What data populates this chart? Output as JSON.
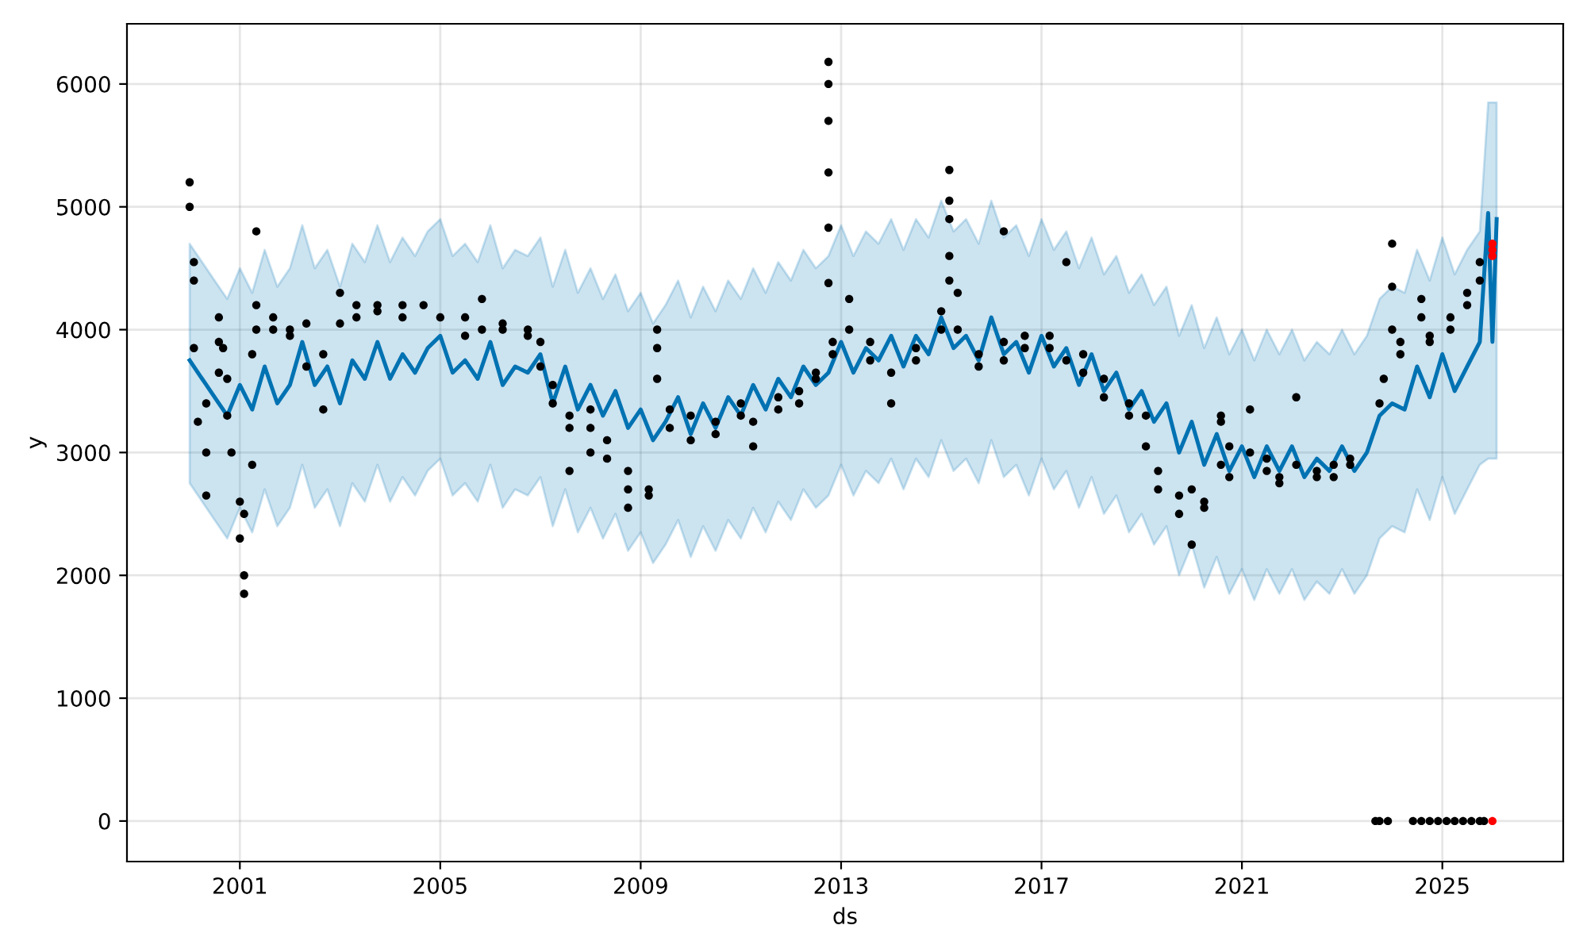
{
  "chart_data": {
    "type": "line",
    "xlabel": "ds",
    "ylabel": "y",
    "grid": true,
    "xlim": [
      "1998-10-01",
      "2027-06-01"
    ],
    "xticks": [
      {
        "value": "2001-01-01",
        "label": "2001"
      },
      {
        "value": "2005-01-01",
        "label": "2005"
      },
      {
        "value": "2009-01-01",
        "label": "2009"
      },
      {
        "value": "2013-01-01",
        "label": "2013"
      },
      {
        "value": "2017-01-01",
        "label": "2017"
      },
      {
        "value": "2021-01-01",
        "label": "2021"
      },
      {
        "value": "2025-01-01",
        "label": "2025"
      }
    ],
    "ylim": [
      -330,
      6490
    ],
    "yticks": [
      0,
      1000,
      2000,
      3000,
      4000,
      5000,
      6000
    ],
    "series": [
      {
        "color": "#0072b2",
        "x": [
          "2000-01",
          "2000-04",
          "2000-07",
          "2000-10",
          "2001-01",
          "2001-04",
          "2001-07",
          "2001-10",
          "2002-01",
          "2002-04",
          "2002-07",
          "2002-10",
          "2003-01",
          "2003-04",
          "2003-07",
          "2003-10",
          "2004-01",
          "2004-04",
          "2004-07",
          "2004-10",
          "2005-01",
          "2005-04",
          "2005-07",
          "2005-10",
          "2006-01",
          "2006-04",
          "2006-07",
          "2006-10",
          "2007-01",
          "2007-04",
          "2007-07",
          "2007-10",
          "2008-01",
          "2008-04",
          "2008-07",
          "2008-10",
          "2009-01",
          "2009-04",
          "2009-07",
          "2009-10",
          "2010-01",
          "2010-04",
          "2010-07",
          "2010-10",
          "2011-01",
          "2011-04",
          "2011-07",
          "2011-10",
          "2012-01",
          "2012-04",
          "2012-07",
          "2012-10",
          "2013-01",
          "2013-04",
          "2013-07",
          "2013-10",
          "2014-01",
          "2014-04",
          "2014-07",
          "2014-10",
          "2015-01",
          "2015-04",
          "2015-07",
          "2015-10",
          "2016-01",
          "2016-04",
          "2016-07",
          "2016-10",
          "2017-01",
          "2017-04",
          "2017-07",
          "2017-10",
          "2018-01",
          "2018-04",
          "2018-07",
          "2018-10",
          "2019-01",
          "2019-04",
          "2019-07",
          "2019-10",
          "2020-01",
          "2020-04",
          "2020-07",
          "2020-10",
          "2021-01",
          "2021-04",
          "2021-07",
          "2021-10",
          "2022-01",
          "2022-04",
          "2022-07",
          "2022-10",
          "2023-01",
          "2023-04",
          "2023-07",
          "2023-10",
          "2024-01",
          "2024-04",
          "2024-07",
          "2024-10",
          "2025-01",
          "2025-04",
          "2025-07",
          "2025-10",
          "2025-12",
          "2026-01",
          "2026-02"
        ],
        "values": [
          3750,
          3600,
          3450,
          3300,
          3550,
          3350,
          3700,
          3400,
          3550,
          3900,
          3550,
          3700,
          3400,
          3750,
          3600,
          3900,
          3600,
          3800,
          3650,
          3850,
          3950,
          3650,
          3750,
          3600,
          3900,
          3550,
          3700,
          3650,
          3800,
          3400,
          3700,
          3350,
          3550,
          3300,
          3500,
          3200,
          3350,
          3100,
          3250,
          3450,
          3150,
          3400,
          3200,
          3450,
          3300,
          3550,
          3350,
          3600,
          3450,
          3700,
          3550,
          3650,
          3900,
          3650,
          3850,
          3750,
          3950,
          3700,
          3950,
          3800,
          4100,
          3850,
          3950,
          3750,
          4100,
          3800,
          3900,
          3650,
          3950,
          3700,
          3850,
          3550,
          3800,
          3500,
          3650,
          3350,
          3500,
          3250,
          3400,
          3000,
          3250,
          2900,
          3150,
          2850,
          3050,
          2800,
          3050,
          2850,
          3050,
          2800,
          2950,
          2850,
          3050,
          2850,
          3000,
          3300,
          3400,
          3350,
          3700,
          3450,
          3800,
          3500,
          3700,
          3900,
          4950,
          3900,
          4900
        ],
        "upper": [
          4700,
          4550,
          4400,
          4250,
          4500,
          4300,
          4650,
          4350,
          4500,
          4850,
          4500,
          4650,
          4350,
          4700,
          4550,
          4850,
          4550,
          4750,
          4600,
          4800,
          4900,
          4600,
          4700,
          4550,
          4850,
          4500,
          4650,
          4600,
          4750,
          4350,
          4650,
          4300,
          4500,
          4250,
          4450,
          4150,
          4300,
          4050,
          4200,
          4400,
          4100,
          4350,
          4150,
          4400,
          4250,
          4500,
          4300,
          4550,
          4400,
          4650,
          4500,
          4600,
          4850,
          4600,
          4800,
          4700,
          4900,
          4650,
          4900,
          4750,
          5050,
          4800,
          4900,
          4700,
          5050,
          4750,
          4850,
          4600,
          4900,
          4650,
          4800,
          4500,
          4750,
          4450,
          4600,
          4300,
          4450,
          4200,
          4350,
          3950,
          4200,
          3850,
          4100,
          3800,
          4000,
          3750,
          4000,
          3800,
          4000,
          3750,
          3900,
          3800,
          4000,
          3800,
          3950,
          4250,
          4350,
          4300,
          4650,
          4400,
          4750,
          4450,
          4650,
          4800,
          5850,
          5850,
          5850
        ],
        "lower": [
          2750,
          2600,
          2450,
          2300,
          2550,
          2350,
          2700,
          2400,
          2550,
          2900,
          2550,
          2700,
          2400,
          2750,
          2600,
          2900,
          2600,
          2800,
          2650,
          2850,
          2950,
          2650,
          2750,
          2600,
          2900,
          2550,
          2700,
          2650,
          2800,
          2400,
          2700,
          2350,
          2550,
          2300,
          2500,
          2200,
          2350,
          2100,
          2250,
          2450,
          2150,
          2400,
          2200,
          2450,
          2300,
          2550,
          2350,
          2600,
          2450,
          2700,
          2550,
          2650,
          2900,
          2650,
          2850,
          2750,
          2950,
          2700,
          2950,
          2800,
          3100,
          2850,
          2950,
          2750,
          3100,
          2800,
          2900,
          2650,
          2950,
          2700,
          2850,
          2550,
          2800,
          2500,
          2650,
          2350,
          2500,
          2250,
          2400,
          2000,
          2250,
          1900,
          2150,
          1850,
          2050,
          1800,
          2050,
          1850,
          2050,
          1800,
          1950,
          1850,
          2050,
          1850,
          2000,
          2300,
          2400,
          2350,
          2700,
          2450,
          2800,
          2500,
          2700,
          2900,
          2950,
          2950,
          2950
        ]
      },
      {
        "type": "scatter",
        "marker": "circle",
        "color": "#000000",
        "x": [
          "2000-01",
          "2000-01",
          "2000-02",
          "2000-02",
          "2000-02",
          "2000-03",
          "2000-05",
          "2000-05",
          "2000-05",
          "2000-08",
          "2000-08",
          "2000-08",
          "2000-09",
          "2000-10",
          "2000-10",
          "2000-11",
          "2001-01",
          "2001-01",
          "2001-02",
          "2001-02",
          "2001-02",
          "2001-04",
          "2001-04",
          "2001-05",
          "2001-05",
          "2001-05",
          "2001-09",
          "2001-09",
          "2002-01",
          "2002-01",
          "2002-05",
          "2002-05",
          "2002-09",
          "2002-09",
          "2003-01",
          "2003-01",
          "2003-05",
          "2003-05",
          "2003-10",
          "2003-10",
          "2004-04",
          "2004-04",
          "2004-09",
          "2005-01",
          "2005-07",
          "2005-07",
          "2005-11",
          "2005-11",
          "2006-04",
          "2006-04",
          "2006-10",
          "2006-10",
          "2007-01",
          "2007-01",
          "2007-04",
          "2007-04",
          "2007-08",
          "2007-08",
          "2007-08",
          "2008-01",
          "2008-01",
          "2008-01",
          "2008-05",
          "2008-05",
          "2008-10",
          "2008-10",
          "2008-10",
          "2009-03",
          "2009-03",
          "2009-05",
          "2009-05",
          "2009-05",
          "2009-08",
          "2009-08",
          "2010-01",
          "2010-01",
          "2010-07",
          "2010-07",
          "2011-01",
          "2011-01",
          "2011-04",
          "2011-04",
          "2011-10",
          "2011-10",
          "2012-03",
          "2012-03",
          "2012-07",
          "2012-07",
          "2012-10",
          "2012-10",
          "2012-10",
          "2012-10",
          "2012-10",
          "2012-10",
          "2012-11",
          "2012-11",
          "2013-03",
          "2013-03",
          "2013-08",
          "2013-08",
          "2014-01",
          "2014-01",
          "2014-07",
          "2014-07",
          "2015-01",
          "2015-01",
          "2015-03",
          "2015-03",
          "2015-03",
          "2015-03",
          "2015-03",
          "2015-05",
          "2015-05",
          "2015-10",
          "2015-10",
          "2016-04",
          "2016-04",
          "2016-04",
          "2016-09",
          "2016-09",
          "2017-03",
          "2017-03",
          "2017-07",
          "2017-07",
          "2017-11",
          "2017-11",
          "2018-04",
          "2018-04",
          "2018-10",
          "2018-10",
          "2019-02",
          "2019-02",
          "2019-05",
          "2019-05",
          "2019-10",
          "2019-10",
          "2020-01",
          "2020-01",
          "2020-04",
          "2020-04",
          "2020-08",
          "2020-08",
          "2020-08",
          "2020-10",
          "2020-10",
          "2021-03",
          "2021-03",
          "2021-07",
          "2021-07",
          "2021-10",
          "2021-10",
          "2022-02",
          "2022-02",
          "2022-07",
          "2022-07",
          "2022-11",
          "2022-11",
          "2023-03",
          "2023-03",
          "2023-10",
          "2023-11",
          "2024-01",
          "2024-01",
          "2024-01",
          "2024-03",
          "2024-03",
          "2024-08",
          "2024-08",
          "2024-10",
          "2024-10",
          "2025-03",
          "2025-03",
          "2025-07",
          "2025-07",
          "2025-10",
          "2025-10",
          "2023-09",
          "2023-10",
          "2023-12",
          "2024-06",
          "2024-08",
          "2024-10",
          "2024-12",
          "2025-02",
          "2025-04",
          "2025-06",
          "2025-08",
          "2025-10",
          "2025-11"
        ],
        "values": [
          5200,
          5000,
          4550,
          4400,
          3850,
          3250,
          2650,
          3000,
          3400,
          3900,
          4100,
          3650,
          3850,
          3600,
          3300,
          3000,
          2600,
          2300,
          2000,
          1850,
          2500,
          2900,
          3800,
          4800,
          4000,
          4200,
          4000,
          4100,
          3950,
          4000,
          4050,
          3700,
          3350,
          3800,
          4300,
          4050,
          4100,
          4200,
          4200,
          4150,
          4200,
          4100,
          4200,
          4100,
          4100,
          3950,
          4000,
          4250,
          4050,
          4000,
          4000,
          3950,
          3900,
          3700,
          3550,
          3400,
          3300,
          3200,
          2850,
          3350,
          3200,
          3000,
          3100,
          2950,
          2850,
          2700,
          2550,
          2650,
          2700,
          3850,
          4000,
          3600,
          3350,
          3200,
          3300,
          3100,
          3250,
          3150,
          3300,
          3400,
          3250,
          3050,
          3350,
          3450,
          3500,
          3400,
          3650,
          3600,
          6180,
          6000,
          5700,
          5280,
          4830,
          4380,
          3900,
          3800,
          4000,
          4250,
          3750,
          3900,
          3650,
          3400,
          3750,
          3850,
          4000,
          4150,
          4400,
          4600,
          5300,
          5050,
          4900,
          4300,
          4000,
          3700,
          3800,
          3900,
          4800,
          3750,
          3850,
          3950,
          3950,
          3850,
          4550,
          3750,
          3800,
          3650,
          3600,
          3450,
          3400,
          3300,
          3300,
          3050,
          2850,
          2700,
          2650,
          2500,
          2700,
          2250,
          2550,
          2600,
          2900,
          3300,
          3250,
          3050,
          2800,
          3000,
          3350,
          2950,
          2850,
          2800,
          2750,
          2900,
          3450,
          2800,
          2850,
          2900,
          2800,
          2950,
          2900,
          3400,
          3600,
          4700,
          4350,
          4000,
          3800,
          3900,
          4250,
          4100,
          3950,
          3900,
          4000,
          4100,
          4200,
          4300,
          4400,
          4550,
          0,
          0,
          0,
          0,
          0,
          0,
          0,
          0,
          0,
          0,
          0,
          0,
          0
        ]
      },
      {
        "type": "scatter",
        "marker": "circle",
        "color": "#ff0000",
        "x": [
          "2026-01",
          "2026-01",
          "2026-01",
          "2026-01"
        ],
        "values": [
          4700,
          4650,
          4600,
          0
        ]
      }
    ]
  }
}
